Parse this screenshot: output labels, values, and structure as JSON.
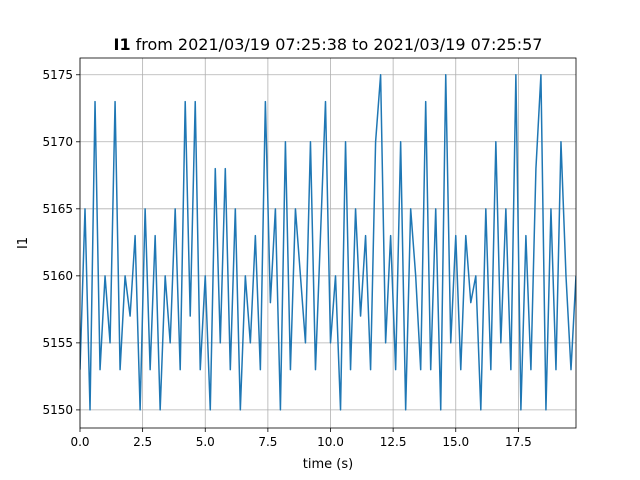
{
  "chart_data": {
    "type": "line",
    "title_bold": "I1",
    "title": "from 2021/03/19 07:25:38 to 2021/03/19 07:25:57",
    "x_label": "time (s)",
    "y_label": "I1",
    "x": [
      0,
      0.2,
      0.4,
      0.6,
      0.8,
      1,
      1.2,
      1.4,
      1.6,
      1.8,
      2,
      2.2,
      2.4,
      2.6,
      2.8,
      3,
      3.2,
      3.4,
      3.6,
      3.8,
      4,
      4.2,
      4.4,
      4.6,
      4.8,
      5,
      5.2,
      5.4,
      5.6,
      5.8,
      6,
      6.2,
      6.4,
      6.6,
      6.8,
      7,
      7.2,
      7.4,
      7.6,
      7.8,
      8,
      8.2,
      8.4,
      8.6,
      8.8,
      9,
      9.2,
      9.4,
      9.6,
      9.8,
      10,
      10.2,
      10.4,
      10.6,
      10.8,
      11,
      11.2,
      11.4,
      11.6,
      11.8,
      12,
      12.2,
      12.4,
      12.6,
      12.8,
      13,
      13.2,
      13.4,
      13.6,
      13.8,
      14,
      14.2,
      14.4,
      14.6,
      14.8,
      15,
      15.2,
      15.4,
      15.6,
      15.8,
      16,
      16.2,
      16.4,
      16.6,
      16.8,
      17,
      17.2,
      17.4,
      17.6,
      17.8,
      18,
      18.2,
      18.4,
      18.6,
      18.8,
      19,
      19.2,
      19.4,
      19.6,
      19.8
    ],
    "series": [
      {
        "name": "I1",
        "color": "#1f77b4",
        "values": [
          5153,
          5165,
          5150,
          5173,
          5153,
          5160,
          5155,
          5173,
          5153,
          5160,
          5157,
          5163,
          5150,
          5165,
          5153,
          5163,
          5150,
          5160,
          5155,
          5165,
          5153,
          5173,
          5157,
          5173,
          5153,
          5160,
          5150,
          5168,
          5155,
          5168,
          5153,
          5165,
          5150,
          5160,
          5155,
          5163,
          5153,
          5173,
          5158,
          5165,
          5150,
          5170,
          5153,
          5165,
          5160,
          5155,
          5170,
          5153,
          5163,
          5173,
          5155,
          5160,
          5150,
          5170,
          5153,
          5165,
          5157,
          5163,
          5153,
          5170,
          5175,
          5155,
          5163,
          5153,
          5170,
          5150,
          5165,
          5160,
          5153,
          5173,
          5153,
          5165,
          5150,
          5175,
          5155,
          5163,
          5153,
          5163,
          5158,
          5160,
          5150,
          5165,
          5153,
          5170,
          5155,
          5165,
          5153,
          5175,
          5150,
          5163,
          5153,
          5168,
          5175,
          5150,
          5165,
          5153,
          5170,
          5160,
          5153,
          5160
        ]
      }
    ],
    "xlim": [
      0,
      19.8
    ],
    "ylim": [
      5148.65,
      5176.25
    ],
    "xticks": [
      {
        "value": 0,
        "label": "0.0"
      },
      2.5,
      {
        "value": 5,
        "label": "5.0"
      },
      7.5,
      {
        "value": 10,
        "label": "10.0"
      },
      12.5,
      {
        "value": 15,
        "label": "15.0"
      },
      17.5
    ],
    "yticks": [
      5150,
      5155,
      5160,
      5165,
      5170,
      5175
    ],
    "grid": true
  }
}
